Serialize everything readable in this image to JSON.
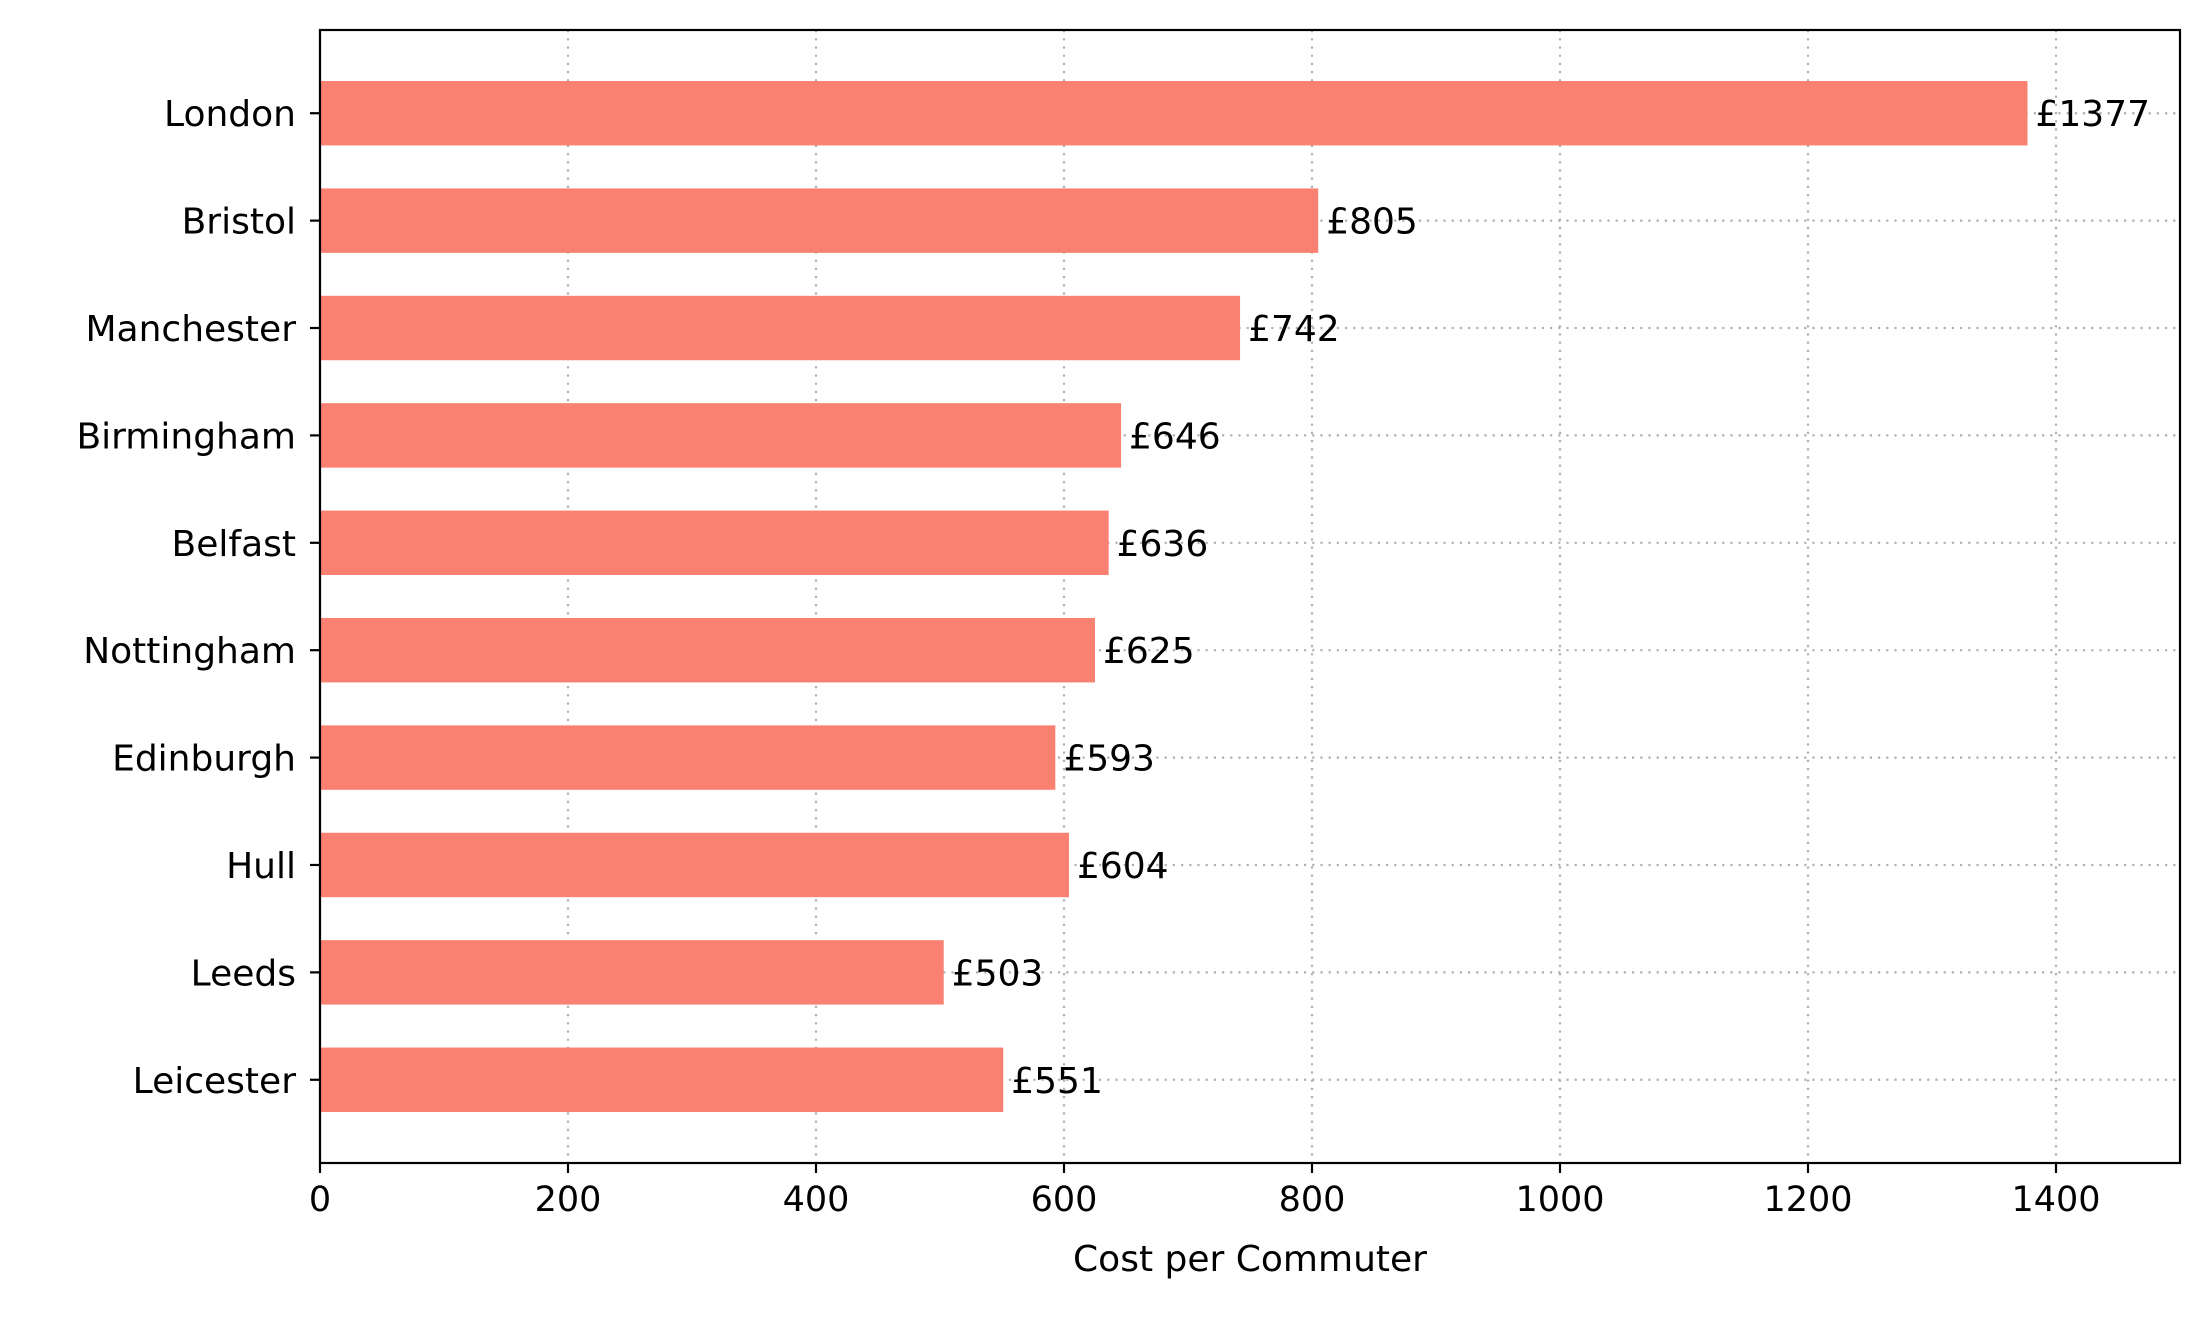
{
  "chart_data": {
    "type": "bar",
    "orientation": "horizontal",
    "categories": [
      "London",
      "Bristol",
      "Manchester",
      "Birmingham",
      "Belfast",
      "Nottingham",
      "Edinburgh",
      "Hull",
      "Leeds",
      "Leicester"
    ],
    "values": [
      1377,
      805,
      742,
      646,
      636,
      625,
      593,
      604,
      503,
      551
    ],
    "value_labels": [
      "£1377",
      "£805",
      "£742",
      "£646",
      "£636",
      "£625",
      "£593",
      "£604",
      "£503",
      "£551"
    ],
    "xlabel": "Cost per Commuter",
    "ylabel": "",
    "title": "",
    "xlim": [
      0,
      1500
    ],
    "xticks": [
      0,
      200,
      400,
      600,
      800,
      1000,
      1200,
      1400
    ],
    "grid": true,
    "grid_style": "dotted",
    "bar_color": "#fa8072",
    "grid_color": "#b0b0b0"
  }
}
